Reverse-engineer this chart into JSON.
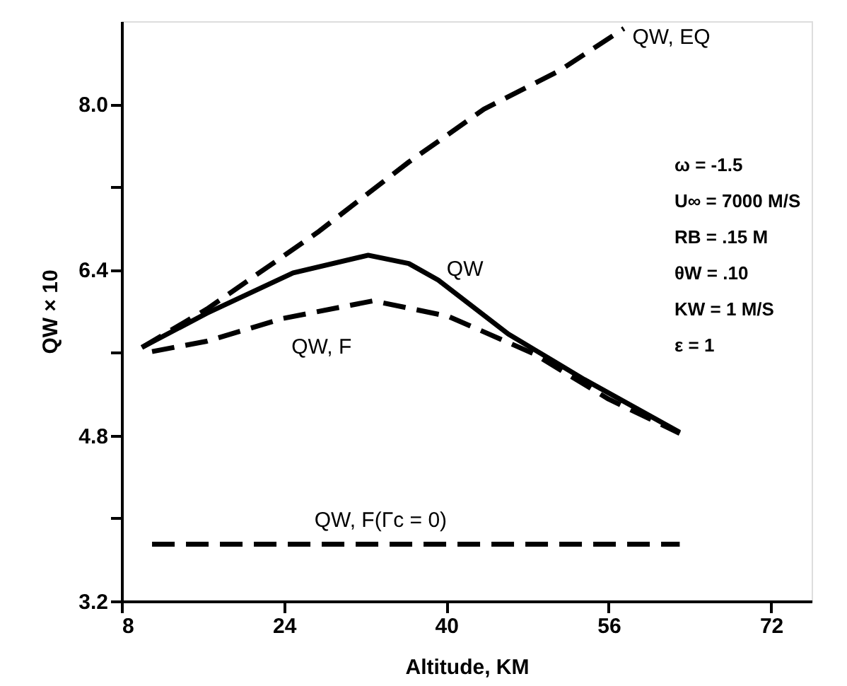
{
  "chart_data": {
    "type": "line",
    "xlabel": "Altitude, KM",
    "ylabel": "QW × 10",
    "xlim": [
      8,
      76
    ],
    "xticks": [
      8,
      24,
      40,
      56,
      72
    ],
    "ylim": [
      3.2,
      8.8
    ],
    "yticks": [
      3.2,
      {
        "value": 4.0,
        "label": null
      },
      4.8,
      {
        "value": 5.6,
        "label": null
      },
      6.4,
      {
        "value": 7.2,
        "label": null
      },
      {
        "value": 8.0,
        "label": "8.0"
      }
    ],
    "grid": false,
    "marker": "none",
    "series": [
      {
        "color": "#000000",
        "line_style": "dashed",
        "x": [
          10.0,
          16.4,
          27.3,
          36.3,
          43.7,
          51.1,
          57.5
        ],
        "values": [
          5.65,
          6.02,
          6.76,
          7.44,
          7.95,
          8.32,
          8.73
        ]
      },
      {
        "color": "#000000",
        "line_style": "solid",
        "x": [
          10.0,
          16.4,
          24.9,
          32.3,
          36.3,
          39.2,
          46.1,
          53.6,
          63.0
        ],
        "values": [
          5.65,
          5.98,
          6.37,
          6.54,
          6.46,
          6.3,
          5.78,
          5.34,
          4.83
        ]
      },
      {
        "color": "#000000",
        "line_style": "dashed",
        "x": [
          11.0,
          16.4,
          23.9,
          32.8,
          40.2,
          48.6,
          56.0,
          63.0
        ],
        "values": [
          5.61,
          5.71,
          5.93,
          6.1,
          5.95,
          5.59,
          5.15,
          4.82
        ]
      },
      {
        "color": "#000000",
        "line_style": "dashed",
        "x": [
          11.0,
          63.0
        ],
        "values": [
          3.75,
          3.75
        ]
      }
    ],
    "annotations": [
      {
        "text": "QW, EQ",
        "x": 57.5,
        "y": 8.73
      },
      {
        "text": "QW",
        "x": 39.2,
        "y": 6.3
      },
      {
        "text": "QW, F",
        "x": 23.9,
        "y": 5.93
      },
      {
        "text": "QW, F(Γc = 0)",
        "x": 27.0,
        "y": 3.75
      },
      "ω = -1.5",
      "U∞ = 7000 M/S",
      "RB = .15 M",
      "θW = .10",
      "KW = 1 M/S",
      "ε = 1"
    ]
  }
}
